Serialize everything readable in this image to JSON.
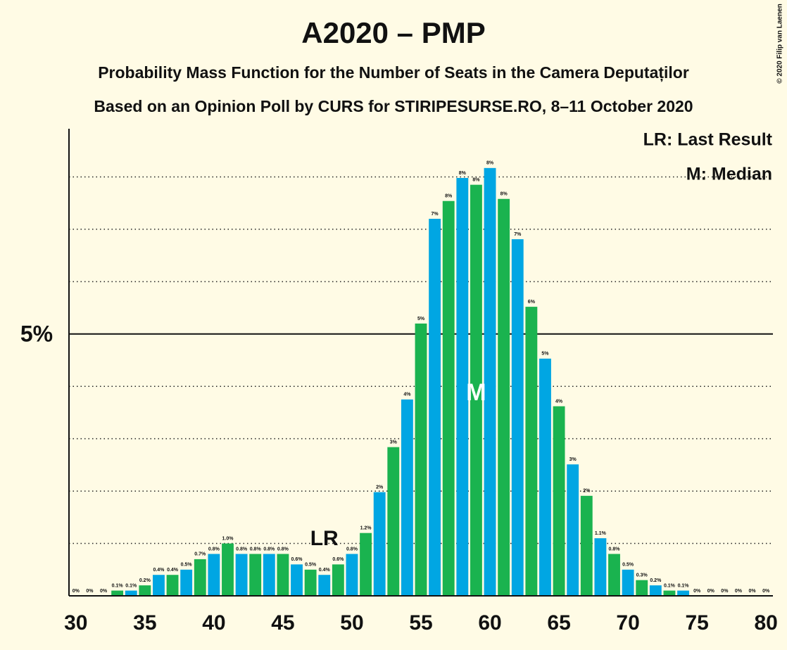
{
  "chart_data": {
    "type": "bar",
    "title": "A2020 – PMP",
    "subtitle": [
      "Probability Mass Function for the Number of Seats in the Camera Deputaților",
      "Based on an Opinion Poll by CURS for STIRIPESURSE.RO, 8–11 October 2020"
    ],
    "credit": "© 2020 Filip van Laenen",
    "x": [
      30,
      31,
      32,
      33,
      34,
      35,
      36,
      37,
      38,
      39,
      40,
      41,
      42,
      43,
      44,
      45,
      46,
      47,
      48,
      49,
      50,
      51,
      52,
      53,
      54,
      55,
      56,
      57,
      58,
      59,
      60,
      61,
      62,
      63,
      64,
      65,
      66,
      67,
      68,
      69,
      70,
      71,
      72,
      73,
      74,
      75,
      76,
      77,
      78,
      79,
      80
    ],
    "values": [
      0,
      0,
      0,
      0.1,
      0.1,
      0.2,
      0.4,
      0.4,
      0.5,
      0.7,
      0.8,
      1.0,
      0.8,
      0.8,
      0.8,
      0.8,
      0.6,
      0.5,
      0.4,
      0.6,
      0.8,
      1.2,
      1.98,
      2.84,
      3.75,
      5.2,
      7.2,
      7.54,
      7.98,
      7.85,
      8.17,
      7.58,
      6.81,
      5.52,
      4.53,
      3.62,
      2.51,
      1.91,
      1.1,
      0.8,
      0.5,
      0.3,
      0.2,
      0.1,
      0.1,
      0,
      0,
      0,
      0,
      0,
      0
    ],
    "value_labels": [
      "0%",
      "0%",
      "0%",
      "0.1%",
      "0.1%",
      "0.2%",
      "0.4%",
      "0.4%",
      "0.5%",
      "0.7%",
      "0.8%",
      "1.0%",
      "0.8%",
      "0.8%",
      "0.8%",
      "0.8%",
      "0.6%",
      "0.5%",
      "0.4%",
      "0.6%",
      "0.8%",
      "1.2%",
      "2%",
      "3%",
      "4%",
      "5%",
      "7%",
      "8%",
      "8%",
      "8%",
      "8%",
      "8%",
      "7%",
      "6%",
      "5%",
      "4%",
      "3%",
      "2%",
      "1.1%",
      "0.8%",
      "0.5%",
      "0.3%",
      "0.2%",
      "0.1%",
      "0.1%",
      "0%",
      "0%",
      "0%",
      "0%",
      "0%",
      "0%"
    ],
    "colors": [
      "#00a6e3",
      "#1ab34f"
    ],
    "xlim": [
      29.5,
      80.5
    ],
    "xticks": [
      30,
      35,
      40,
      45,
      50,
      55,
      60,
      65,
      70,
      75,
      80
    ],
    "ylim": [
      0,
      8.92
    ],
    "yticks": [
      {
        "value": 5,
        "label": "5%"
      }
    ],
    "gridlines": [
      1,
      2,
      3,
      4,
      6,
      7,
      8
    ],
    "annotations": [
      {
        "text": "LR",
        "x": 48
      },
      {
        "text": "M",
        "x": 59
      }
    ],
    "legend": [
      "LR: Last Result",
      "M: Median"
    ]
  }
}
